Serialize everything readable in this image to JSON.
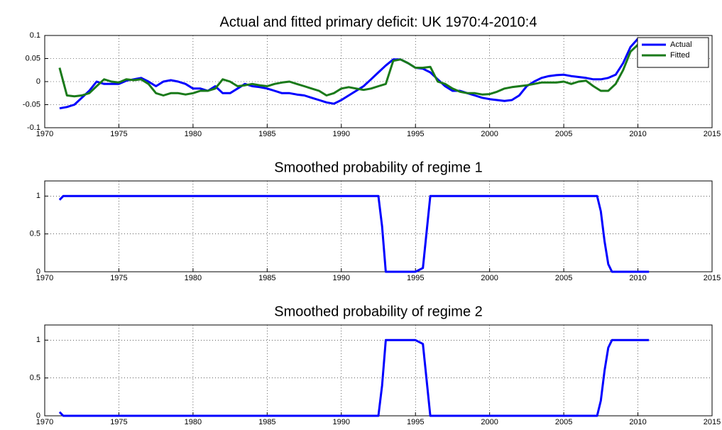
{
  "chart_data": [
    {
      "type": "line",
      "title": "Actual and fitted primary deficit: UK 1970:4-2010:4",
      "x": [
        1971,
        1971.5,
        1972,
        1972.5,
        1973,
        1973.5,
        1974,
        1974.5,
        1975,
        1975.5,
        1976,
        1976.5,
        1977,
        1977.5,
        1978,
        1978.5,
        1979,
        1979.5,
        1980,
        1980.5,
        1981,
        1981.5,
        1982,
        1982.5,
        1983,
        1983.5,
        1984,
        1984.5,
        1985,
        1985.5,
        1986,
        1986.5,
        1987,
        1987.5,
        1988,
        1988.5,
        1989,
        1989.5,
        1990,
        1990.5,
        1991,
        1991.5,
        1992,
        1992.5,
        1993,
        1993.5,
        1994,
        1994.5,
        1995,
        1995.5,
        1996,
        1996.5,
        1997,
        1997.5,
        1998,
        1998.5,
        1999,
        1999.5,
        2000,
        2000.5,
        2001,
        2001.5,
        2002,
        2002.5,
        2003,
        2003.5,
        2004,
        2004.5,
        2005,
        2005.5,
        2006,
        2006.5,
        2007,
        2007.5,
        2008,
        2008.5,
        2009,
        2009.5,
        2010,
        2010.5
      ],
      "series": [
        {
          "name": "Actual",
          "color": "#0000ff",
          "values": [
            -0.058,
            -0.055,
            -0.05,
            -0.035,
            -0.02,
            0.0,
            -0.005,
            -0.005,
            -0.005,
            0.002,
            0.005,
            0.008,
            0.0,
            -0.01,
            0.0,
            0.003,
            0.0,
            -0.005,
            -0.015,
            -0.015,
            -0.02,
            -0.01,
            -0.025,
            -0.025,
            -0.015,
            -0.005,
            -0.01,
            -0.012,
            -0.015,
            -0.02,
            -0.025,
            -0.025,
            -0.028,
            -0.03,
            -0.035,
            -0.04,
            -0.045,
            -0.048,
            -0.04,
            -0.03,
            -0.02,
            -0.01,
            0.005,
            0.02,
            0.035,
            0.048,
            0.048,
            0.04,
            0.03,
            0.028,
            0.02,
            0.005,
            -0.01,
            -0.02,
            -0.02,
            -0.025,
            -0.03,
            -0.035,
            -0.038,
            -0.04,
            -0.042,
            -0.04,
            -0.03,
            -0.01,
            0.0,
            0.008,
            0.012,
            0.014,
            0.015,
            0.012,
            0.01,
            0.008,
            0.005,
            0.005,
            0.008,
            0.015,
            0.04,
            0.075,
            0.093,
            0.088
          ]
        },
        {
          "name": "Fitted",
          "color": "#1a7a1a",
          "values": [
            0.03,
            -0.03,
            -0.032,
            -0.03,
            -0.025,
            -0.01,
            0.005,
            0.0,
            -0.002,
            0.005,
            0.003,
            0.005,
            -0.005,
            -0.025,
            -0.03,
            -0.025,
            -0.025,
            -0.028,
            -0.025,
            -0.02,
            -0.02,
            -0.015,
            0.005,
            0.0,
            -0.01,
            -0.008,
            -0.005,
            -0.008,
            -0.01,
            -0.005,
            -0.002,
            0.0,
            -0.005,
            -0.01,
            -0.015,
            -0.02,
            -0.03,
            -0.025,
            -0.015,
            -0.012,
            -0.015,
            -0.018,
            -0.015,
            -0.01,
            -0.005,
            0.045,
            0.048,
            0.04,
            0.03,
            0.03,
            0.032,
            0.0,
            -0.005,
            -0.015,
            -0.022,
            -0.025,
            -0.025,
            -0.028,
            -0.027,
            -0.022,
            -0.015,
            -0.012,
            -0.01,
            -0.008,
            -0.005,
            -0.002,
            -0.002,
            -0.002,
            0.0,
            -0.005,
            0.0,
            0.002,
            -0.01,
            -0.02,
            -0.02,
            -0.005,
            0.025,
            0.065,
            0.08,
            0.085
          ]
        }
      ],
      "xlim": [
        1970,
        2015
      ],
      "xticks": [
        1970,
        1975,
        1980,
        1985,
        1990,
        1995,
        2000,
        2005,
        2010,
        2015
      ],
      "ylim": [
        -0.1,
        0.1
      ],
      "yticks": [
        -0.1,
        -0.05,
        0,
        0.05,
        0.1
      ],
      "grid": true,
      "legend": "northeast"
    },
    {
      "type": "line",
      "title": "Smoothed probability of regime 1",
      "x": [
        1971,
        1971.25,
        1992.5,
        1992.75,
        1993,
        1995,
        1995.5,
        1996,
        2007.25,
        2007.5,
        2007.75,
        2008,
        2008.25,
        2010.75
      ],
      "values": [
        0.95,
        1,
        1,
        0.6,
        0,
        0,
        0.05,
        1,
        1,
        0.8,
        0.4,
        0.1,
        0,
        0
      ],
      "color": "#0000ff",
      "xlim": [
        1970,
        2015
      ],
      "xticks": [
        1970,
        1975,
        1980,
        1985,
        1990,
        1995,
        2000,
        2005,
        2010,
        2015
      ],
      "ylim": [
        0,
        1.2
      ],
      "yticks": [
        0,
        0.5,
        1
      ],
      "grid": true
    },
    {
      "type": "line",
      "title": "Smoothed probability of regime 2",
      "x": [
        1971,
        1971.25,
        1992.5,
        1992.75,
        1993,
        1995,
        1995.5,
        1996,
        2007.25,
        2007.5,
        2007.75,
        2008,
        2008.25,
        2010.75
      ],
      "values": [
        0.05,
        0,
        0,
        0.4,
        1,
        1,
        0.95,
        0,
        0,
        0.2,
        0.6,
        0.9,
        1,
        1
      ],
      "color": "#0000ff",
      "xlim": [
        1970,
        2015
      ],
      "xticks": [
        1970,
        1975,
        1980,
        1985,
        1990,
        1995,
        2000,
        2005,
        2010,
        2015
      ],
      "ylim": [
        0,
        1.2
      ],
      "yticks": [
        0,
        0.5,
        1
      ],
      "grid": true
    }
  ]
}
